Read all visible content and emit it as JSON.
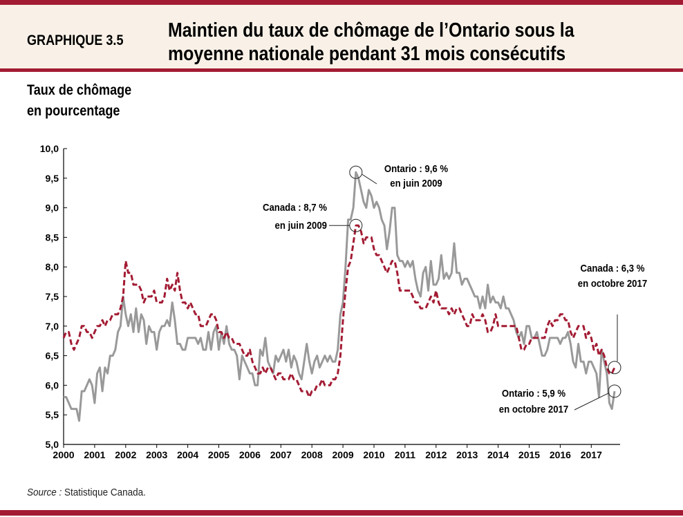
{
  "header": {
    "chart_number": "GRAPHIQUE 3.5",
    "title_line1": "Maintien du taux de chômage de l’Ontario sous la",
    "title_line2": "moyenne nationale pendant 31 mois consécutifs"
  },
  "source_label": "Source :",
  "source_text": "Statistique  Canada.",
  "colors": {
    "brand": "#a31b33",
    "header_bg": "#f9f1e7",
    "canada": "#a31b33",
    "ontario": "#999999"
  },
  "chart_data": {
    "type": "line",
    "ylabel_line1": "Taux de chômage",
    "ylabel_line2": "en pourcentage",
    "ylim": [
      5.0,
      10.0
    ],
    "yticks": [
      "5,0",
      "5,5",
      "6,0",
      "6,5",
      "7,0",
      "7,5",
      "8,0",
      "8,5",
      "9,0",
      "9,5",
      "10,0"
    ],
    "xticks": [
      "2000",
      "2001",
      "2002",
      "2003",
      "2004",
      "2005",
      "2006",
      "2007",
      "2008",
      "2009",
      "2010",
      "2011",
      "2012",
      "2013",
      "2014",
      "2015",
      "2016",
      "2017"
    ],
    "x_start": "2000-01",
    "x_end": "2017-10",
    "frequency": "monthly",
    "grid": false,
    "series": [
      {
        "id": "canada",
        "style": "dashed",
        "color": "#a31b33",
        "values": [
          6.8,
          6.9,
          6.9,
          6.7,
          6.6,
          6.7,
          6.8,
          7.0,
          7.0,
          6.9,
          6.9,
          6.8,
          6.9,
          7.0,
          7.0,
          7.1,
          7.0,
          7.1,
          7.1,
          7.2,
          7.2,
          7.2,
          7.3,
          7.5,
          8.1,
          7.9,
          7.9,
          7.7,
          7.7,
          7.7,
          7.6,
          7.4,
          7.5,
          7.5,
          7.5,
          7.6,
          7.4,
          7.4,
          7.4,
          7.5,
          7.8,
          7.6,
          7.7,
          7.6,
          7.9,
          7.6,
          7.4,
          7.4,
          7.3,
          7.4,
          7.3,
          7.2,
          7.2,
          7.0,
          7.0,
          7.0,
          7.1,
          7.2,
          7.2,
          7.1,
          6.9,
          6.9,
          6.8,
          6.9,
          6.8,
          6.8,
          6.7,
          6.7,
          6.7,
          6.6,
          6.5,
          6.5,
          6.6,
          6.4,
          6.3,
          6.2,
          6.2,
          6.3,
          6.2,
          6.3,
          6.3,
          6.2,
          6.1,
          6.2,
          6.2,
          6.1,
          6.1,
          6.1,
          6.2,
          6.1,
          6.1,
          6.0,
          5.9,
          5.9,
          5.9,
          5.8,
          5.9,
          5.9,
          6.0,
          6.0,
          6.1,
          6.0,
          6.0,
          6.0,
          6.1,
          6.1,
          6.2,
          6.5,
          7.1,
          7.6,
          8.0,
          8.1,
          8.4,
          8.7,
          8.7,
          8.6,
          8.4,
          8.5,
          8.5,
          8.5,
          8.3,
          8.2,
          8.2,
          8.1,
          8.0,
          7.9,
          8.0,
          8.1,
          8.1,
          7.9,
          7.6,
          7.6,
          7.6,
          7.6,
          7.6,
          7.5,
          7.4,
          7.4,
          7.3,
          7.3,
          7.3,
          7.4,
          7.5,
          7.4,
          7.6,
          7.4,
          7.3,
          7.3,
          7.3,
          7.2,
          7.3,
          7.2,
          7.3,
          7.3,
          7.2,
          7.1,
          7.0,
          7.0,
          7.2,
          7.1,
          7.1,
          7.1,
          7.2,
          7.1,
          6.9,
          6.9,
          7.0,
          7.2,
          7.0,
          7.0,
          7.0,
          7.0,
          7.0,
          7.0,
          7.0,
          7.0,
          6.8,
          6.6,
          6.6,
          6.7,
          6.7,
          6.8,
          6.8,
          6.8,
          6.8,
          6.8,
          6.8,
          7.0,
          7.1,
          7.0,
          7.1,
          7.1,
          7.2,
          7.2,
          7.1,
          7.1,
          6.9,
          6.8,
          6.9,
          7.0,
          7.0,
          7.0,
          6.8,
          6.9,
          6.8,
          6.6,
          6.7,
          6.5,
          6.6,
          6.5,
          6.3,
          6.2,
          6.2,
          6.3
        ]
      },
      {
        "id": "ontario",
        "style": "solid",
        "color": "#999999",
        "values": [
          5.8,
          5.8,
          5.7,
          5.6,
          5.6,
          5.6,
          5.4,
          5.9,
          5.9,
          6.0,
          6.1,
          6.0,
          5.7,
          6.2,
          6.3,
          5.9,
          6.3,
          6.2,
          6.5,
          6.5,
          6.6,
          6.9,
          7.0,
          7.5,
          7.2,
          7.0,
          7.2,
          6.9,
          7.3,
          6.9,
          7.2,
          7.1,
          6.7,
          7.0,
          6.9,
          6.9,
          6.6,
          6.9,
          7.0,
          7.0,
          7.1,
          7.0,
          7.4,
          7.1,
          6.7,
          6.7,
          6.6,
          6.6,
          6.8,
          6.8,
          6.8,
          6.8,
          6.7,
          6.8,
          6.6,
          6.6,
          6.9,
          6.6,
          6.9,
          7.0,
          6.6,
          6.9,
          6.7,
          7.0,
          6.7,
          6.6,
          6.6,
          6.5,
          6.1,
          6.5,
          6.4,
          6.3,
          6.2,
          6.2,
          6.0,
          6.0,
          6.6,
          6.5,
          6.8,
          6.4,
          6.3,
          6.2,
          6.5,
          6.4,
          6.5,
          6.6,
          6.4,
          6.6,
          6.3,
          6.5,
          6.4,
          6.2,
          6.1,
          6.4,
          6.7,
          6.4,
          6.2,
          6.4,
          6.5,
          6.3,
          6.4,
          6.5,
          6.4,
          6.5,
          6.4,
          6.4,
          6.6,
          7.2,
          7.4,
          8.0,
          8.8,
          8.8,
          9.0,
          9.6,
          9.5,
          9.3,
          9.1,
          9.0,
          9.3,
          9.2,
          9.0,
          9.1,
          9.0,
          8.8,
          8.7,
          8.3,
          8.6,
          9.0,
          9.0,
          8.2,
          8.1,
          8.1,
          8.0,
          8.1,
          8.0,
          8.1,
          7.8,
          7.6,
          7.5,
          7.9,
          8.0,
          7.6,
          8.1,
          7.7,
          7.7,
          7.8,
          8.2,
          7.8,
          7.9,
          7.8,
          7.9,
          8.4,
          7.9,
          7.9,
          7.7,
          7.8,
          7.8,
          7.7,
          7.6,
          7.5,
          7.5,
          7.3,
          7.5,
          7.3,
          7.7,
          7.4,
          7.5,
          7.4,
          7.4,
          7.3,
          7.5,
          7.3,
          7.3,
          7.2,
          7.1,
          6.9,
          6.8,
          6.9,
          6.7,
          7.0,
          7.0,
          6.8,
          6.8,
          6.9,
          6.7,
          6.5,
          6.5,
          6.6,
          6.8,
          6.8,
          6.8,
          6.8,
          6.7,
          6.8,
          6.8,
          6.9,
          6.7,
          6.4,
          6.3,
          6.7,
          6.4,
          6.4,
          6.2,
          6.4,
          6.4,
          6.3,
          6.2,
          5.8,
          6.6,
          6.4,
          6.2,
          5.7,
          5.6,
          5.9
        ]
      }
    ],
    "annotations": [
      {
        "id": "ontario-peak",
        "series": "ontario",
        "date": "2009-06",
        "value": 9.6,
        "line1": "Ontario : 9,6 %",
        "line2": "en juin 2009"
      },
      {
        "id": "canada-peak",
        "series": "canada",
        "date": "2009-06",
        "value": 8.7,
        "line1": "Canada : 8,7 %",
        "line2": "en juin 2009"
      },
      {
        "id": "canada-latest",
        "series": "canada",
        "date": "2017-10",
        "value": 6.3,
        "line1": "Canada : 6,3 %",
        "line2": "en octobre 2017"
      },
      {
        "id": "ontario-latest",
        "series": "ontario",
        "date": "2017-10",
        "value": 5.9,
        "line1": "Ontario : 5,9 %",
        "line2": "en octobre 2017"
      }
    ]
  }
}
